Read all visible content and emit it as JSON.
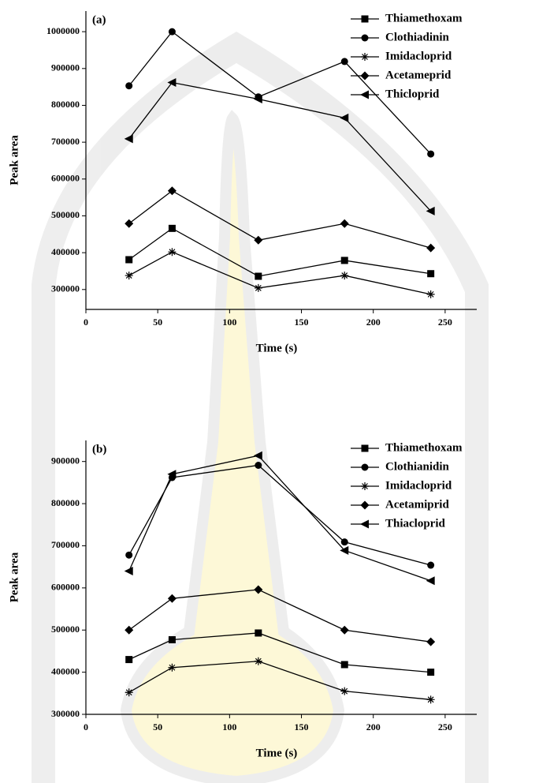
{
  "chart_data": [
    {
      "type": "line",
      "annotation": "(a)",
      "xlabel": "Time (s)",
      "ylabel": "Peak area",
      "x": [
        30,
        60,
        120,
        180,
        240
      ],
      "xlim": [
        0,
        272
      ],
      "xticks": [
        0,
        50,
        100,
        150,
        200,
        250
      ],
      "ylim": [
        246000,
        1056000
      ],
      "yticks": [
        300000,
        400000,
        500000,
        600000,
        700000,
        800000,
        900000,
        1000000
      ],
      "legend": "upper right",
      "series": [
        {
          "name": "Thiamethoxam",
          "color": "#000000",
          "marker": "square",
          "values": [
            381000,
            466000,
            336000,
            379000,
            343000
          ]
        },
        {
          "name": "Clothiadinin",
          "color": "#000000",
          "marker": "circle",
          "values": [
            853000,
            1000000,
            823000,
            919000,
            668000
          ]
        },
        {
          "name": "Imidacloprid",
          "color": "#000000",
          "marker": "asterisk",
          "values": [
            338000,
            402000,
            304000,
            338000,
            287000
          ]
        },
        {
          "name": "Acetameprid",
          "color": "#000000",
          "marker": "diamond",
          "values": [
            479000,
            568000,
            434000,
            479000,
            413000
          ]
        },
        {
          "name": "Thicloprid",
          "color": "#000000",
          "marker": "triangle-left",
          "values": [
            709000,
            862000,
            817000,
            766000,
            513000
          ]
        }
      ]
    },
    {
      "type": "line",
      "annotation": "(b)",
      "xlabel": "Time (s)",
      "ylabel": "Peak area",
      "x": [
        30,
        60,
        120,
        180,
        240
      ],
      "xlim": [
        0,
        272
      ],
      "xticks": [
        0,
        50,
        100,
        150,
        200,
        250
      ],
      "ylim": [
        300000,
        950000
      ],
      "yticks": [
        300000,
        400000,
        500000,
        600000,
        700000,
        800000,
        900000
      ],
      "legend": "upper right",
      "series": [
        {
          "name": "Thiamethoxam",
          "color": "#000000",
          "marker": "square",
          "values": [
            430000,
            477000,
            493000,
            418000,
            400000
          ]
        },
        {
          "name": "Clothianidin",
          "color": "#000000",
          "marker": "circle",
          "values": [
            678000,
            862000,
            891000,
            709000,
            654000
          ]
        },
        {
          "name": "Imidacloprid",
          "color": "#000000",
          "marker": "asterisk",
          "values": [
            352000,
            411000,
            426000,
            355000,
            335000
          ]
        },
        {
          "name": "Acetamiprid",
          "color": "#000000",
          "marker": "diamond",
          "values": [
            500000,
            575000,
            596000,
            500000,
            472000
          ]
        },
        {
          "name": "Thiacloprid",
          "color": "#000000",
          "marker": "triangle-left",
          "values": [
            640000,
            870000,
            914000,
            689000,
            617000
          ]
        }
      ]
    }
  ]
}
